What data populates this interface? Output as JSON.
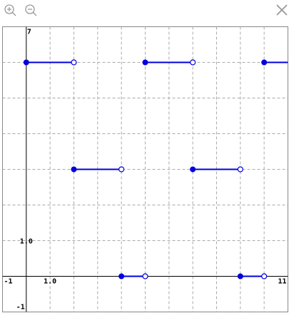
{
  "chart_data": {
    "type": "piecewise",
    "xlim": [
      -1,
      11
    ],
    "ylim": [
      -1,
      7
    ],
    "xticks": [
      -1,
      {
        "value": 1,
        "label": "1.0"
      },
      11
    ],
    "yticks": [
      -1,
      {
        "value": 1,
        "label": "1.0"
      },
      7
    ],
    "grid": true,
    "grid_step": 1,
    "color": "#0000dd",
    "segments": [
      {
        "x": [
          0,
          2
        ],
        "y": 6
      },
      {
        "x": [
          5,
          7
        ],
        "y": 6
      },
      {
        "x": [
          10,
          11
        ],
        "y": 6
      },
      {
        "x": [
          2,
          4
        ],
        "y": 3
      },
      {
        "x": [
          7,
          9
        ],
        "y": 3
      },
      {
        "x": [
          4,
          5
        ],
        "y": 0
      },
      {
        "x": [
          9,
          10
        ],
        "y": 0
      }
    ]
  }
}
